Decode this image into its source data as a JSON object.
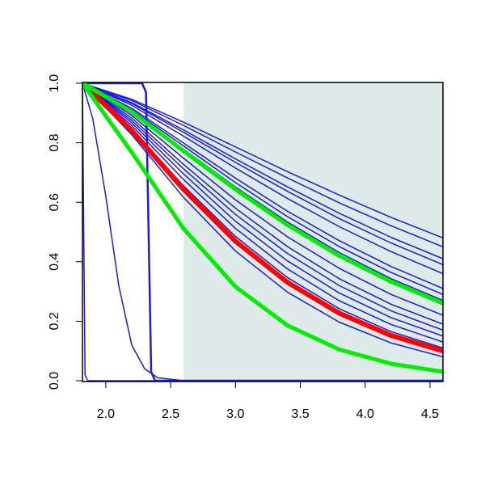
{
  "chart_data": {
    "type": "line",
    "xlim": [
      1.82,
      4.6
    ],
    "ylim": [
      0,
      1
    ],
    "xticks": [
      {
        "value": 2,
        "label": "2.0"
      },
      2.5,
      {
        "value": 3,
        "label": "3.0"
      },
      3.5,
      {
        "value": 4,
        "label": "4.0"
      },
      4.5
    ],
    "yticks": [
      {
        "value": 0,
        "label": "0.0"
      },
      0.2,
      0.4,
      0.6,
      0.8,
      {
        "value": 1,
        "label": "1.0"
      }
    ],
    "shaded_region": {
      "xlim": [
        2.6,
        4.6
      ],
      "color": "#deebea"
    },
    "series": [
      {
        "color": "#1a1ae6",
        "line_width": 1.5,
        "x": [
          1.82,
          2.2,
          2.6,
          3.0,
          3.4,
          3.8,
          4.2,
          4.6
        ],
        "values": [
          1,
          0.946,
          0.869,
          0.786,
          0.703,
          0.624,
          0.549,
          0.48
        ]
      },
      {
        "color": "#1a1ae6",
        "line_width": 1.5,
        "x": [
          1.82,
          2.2,
          2.6,
          3.0,
          3.4,
          3.8,
          4.2,
          4.6
        ],
        "values": [
          1,
          0.942,
          0.858,
          0.769,
          0.682,
          0.598,
          0.521,
          0.45
        ]
      },
      {
        "color": "#1a1ae6",
        "line_width": 1.5,
        "x": [
          1.82,
          2.2,
          2.6,
          3.0,
          3.4,
          3.8,
          4.2,
          4.6
        ],
        "values": [
          1,
          0.935,
          0.843,
          0.746,
          0.652,
          0.563,
          0.482,
          0.41
        ]
      },
      {
        "color": "#1a1ae6",
        "line_width": 1.5,
        "x": [
          1.82,
          2.2,
          2.6,
          3.0,
          3.4,
          3.8,
          4.2,
          4.6
        ],
        "values": [
          1,
          0.932,
          0.835,
          0.734,
          0.637,
          0.545,
          0.463,
          0.39
        ]
      },
      {
        "color": "#1a1ae6",
        "line_width": 1.5,
        "x": [
          1.82,
          2.2,
          2.6,
          3.0,
          3.4,
          3.8,
          4.2,
          4.6
        ],
        "values": [
          1,
          0.926,
          0.822,
          0.715,
          0.613,
          0.518,
          0.434,
          0.36
        ]
      },
      {
        "color": "#1a1ae6",
        "line_width": 1.5,
        "x": [
          1.82,
          2.2,
          2.6,
          3.0,
          3.4,
          3.8,
          4.2,
          4.6
        ],
        "values": [
          1,
          0.916,
          0.799,
          0.681,
          0.57,
          0.471,
          0.384,
          0.31
        ]
      },
      {
        "color": "#1a1ae6",
        "line_width": 1.5,
        "x": [
          1.82,
          2.2,
          2.6,
          3.0,
          3.4,
          3.8,
          4.2,
          4.6
        ],
        "values": [
          1,
          0.911,
          0.789,
          0.666,
          0.552,
          0.451,
          0.364,
          0.29
        ]
      },
      {
        "color": "#1a1ae6",
        "line_width": 1.5,
        "x": [
          1.82,
          2.2,
          2.6,
          3.0,
          3.4,
          3.8,
          4.2,
          4.6
        ],
        "values": [
          1,
          0.906,
          0.778,
          0.651,
          0.534,
          0.431,
          0.343,
          0.27
        ]
      },
      {
        "color": "#1a1ae6",
        "line_width": 1.5,
        "x": [
          1.82,
          2.2,
          2.6,
          3.0,
          3.4,
          3.8,
          4.2,
          4.6
        ],
        "values": [
          1,
          0.892,
          0.748,
          0.608,
          0.484,
          0.378,
          0.29,
          0.22
        ]
      },
      {
        "color": "#1a1ae6",
        "line_width": 1.5,
        "x": [
          1.82,
          2.2,
          2.6,
          3.0,
          3.4,
          3.8,
          4.2,
          4.6
        ],
        "values": [
          1,
          0.883,
          0.727,
          0.58,
          0.451,
          0.343,
          0.257,
          0.19
        ]
      },
      {
        "color": "#1a1ae6",
        "line_width": 1.5,
        "x": [
          1.82,
          2.2,
          2.6,
          3.0,
          3.4,
          3.8,
          4.2,
          4.6
        ],
        "values": [
          1,
          0.875,
          0.712,
          0.559,
          0.428,
          0.32,
          0.235,
          0.17
        ]
      },
      {
        "color": "#1a1ae6",
        "line_width": 1.5,
        "x": [
          1.82,
          2.2,
          2.6,
          3.0,
          3.4,
          3.8,
          4.2,
          4.6
        ],
        "values": [
          1,
          0.867,
          0.695,
          0.536,
          0.403,
          0.295,
          0.212,
          0.15
        ]
      },
      {
        "color": "#1a1ae6",
        "line_width": 1.5,
        "x": [
          1.82,
          2.2,
          2.6,
          3.0,
          3.4,
          3.8,
          4.2,
          4.6
        ],
        "values": [
          1,
          0.858,
          0.676,
          0.512,
          0.376,
          0.269,
          0.189,
          0.13
        ]
      },
      {
        "color": "#1a1ae6",
        "line_width": 1.5,
        "x": [
          1.82,
          2.2,
          2.6,
          3.0,
          3.4,
          3.8,
          4.2,
          4.6
        ],
        "values": [
          1,
          0.847,
          0.655,
          0.485,
          0.347,
          0.242,
          0.165,
          0.11
        ]
      },
      {
        "color": "#1a1ae6",
        "line_width": 1.5,
        "x": [
          1.82,
          2.2,
          2.6,
          3.0,
          3.4,
          3.8,
          4.2,
          4.6
        ],
        "values": [
          1,
          0.827,
          0.616,
          0.436,
          0.298,
          0.197,
          0.127,
          0.08
        ]
      },
      {
        "color": "#1a1ae6",
        "line_width": 1.5,
        "x": [
          1.82,
          1.83,
          1.84,
          1.86,
          4.6
        ],
        "values": [
          1,
          0.5,
          0.02,
          0,
          0
        ]
      },
      {
        "color": "#1a1ae6",
        "line_width": 1.5,
        "x": [
          1.82,
          1.9,
          2.0,
          2.1,
          2.2,
          2.3,
          2.4,
          2.6,
          4.6
        ],
        "values": [
          1,
          0.88,
          0.62,
          0.32,
          0.12,
          0.04,
          0.01,
          0,
          0
        ]
      },
      {
        "color": "#1a1ae6",
        "line_width": 2.5,
        "x": [
          1.82,
          2.28,
          2.31,
          2.33,
          2.35,
          2.38,
          4.6
        ],
        "values": [
          1,
          1,
          0.97,
          0.5,
          0.03,
          0,
          0
        ]
      },
      {
        "color": "#ff0000",
        "line_width": 6,
        "x": [
          1.82,
          2.2,
          2.6,
          3.0,
          3.4,
          3.8,
          4.2,
          4.6
        ],
        "values": [
          1,
          0.841,
          0.643,
          0.469,
          0.331,
          0.227,
          0.152,
          0.1
        ]
      },
      {
        "color": "#00ee00",
        "line_width": 5,
        "x": [
          1.82,
          2.2,
          2.6,
          3.0,
          3.4,
          3.8,
          4.2,
          4.6
        ],
        "values": [
          1,
          0.904,
          0.772,
          0.643,
          0.524,
          0.42,
          0.333,
          0.26
        ]
      },
      {
        "color": "#00ee00",
        "line_width": 5,
        "x": [
          1.82,
          2.2,
          2.6,
          3.0,
          3.4,
          3.8,
          4.2,
          4.6
        ],
        "values": [
          1,
          0.768,
          0.511,
          0.316,
          0.186,
          0.105,
          0.057,
          0.03
        ]
      }
    ]
  }
}
